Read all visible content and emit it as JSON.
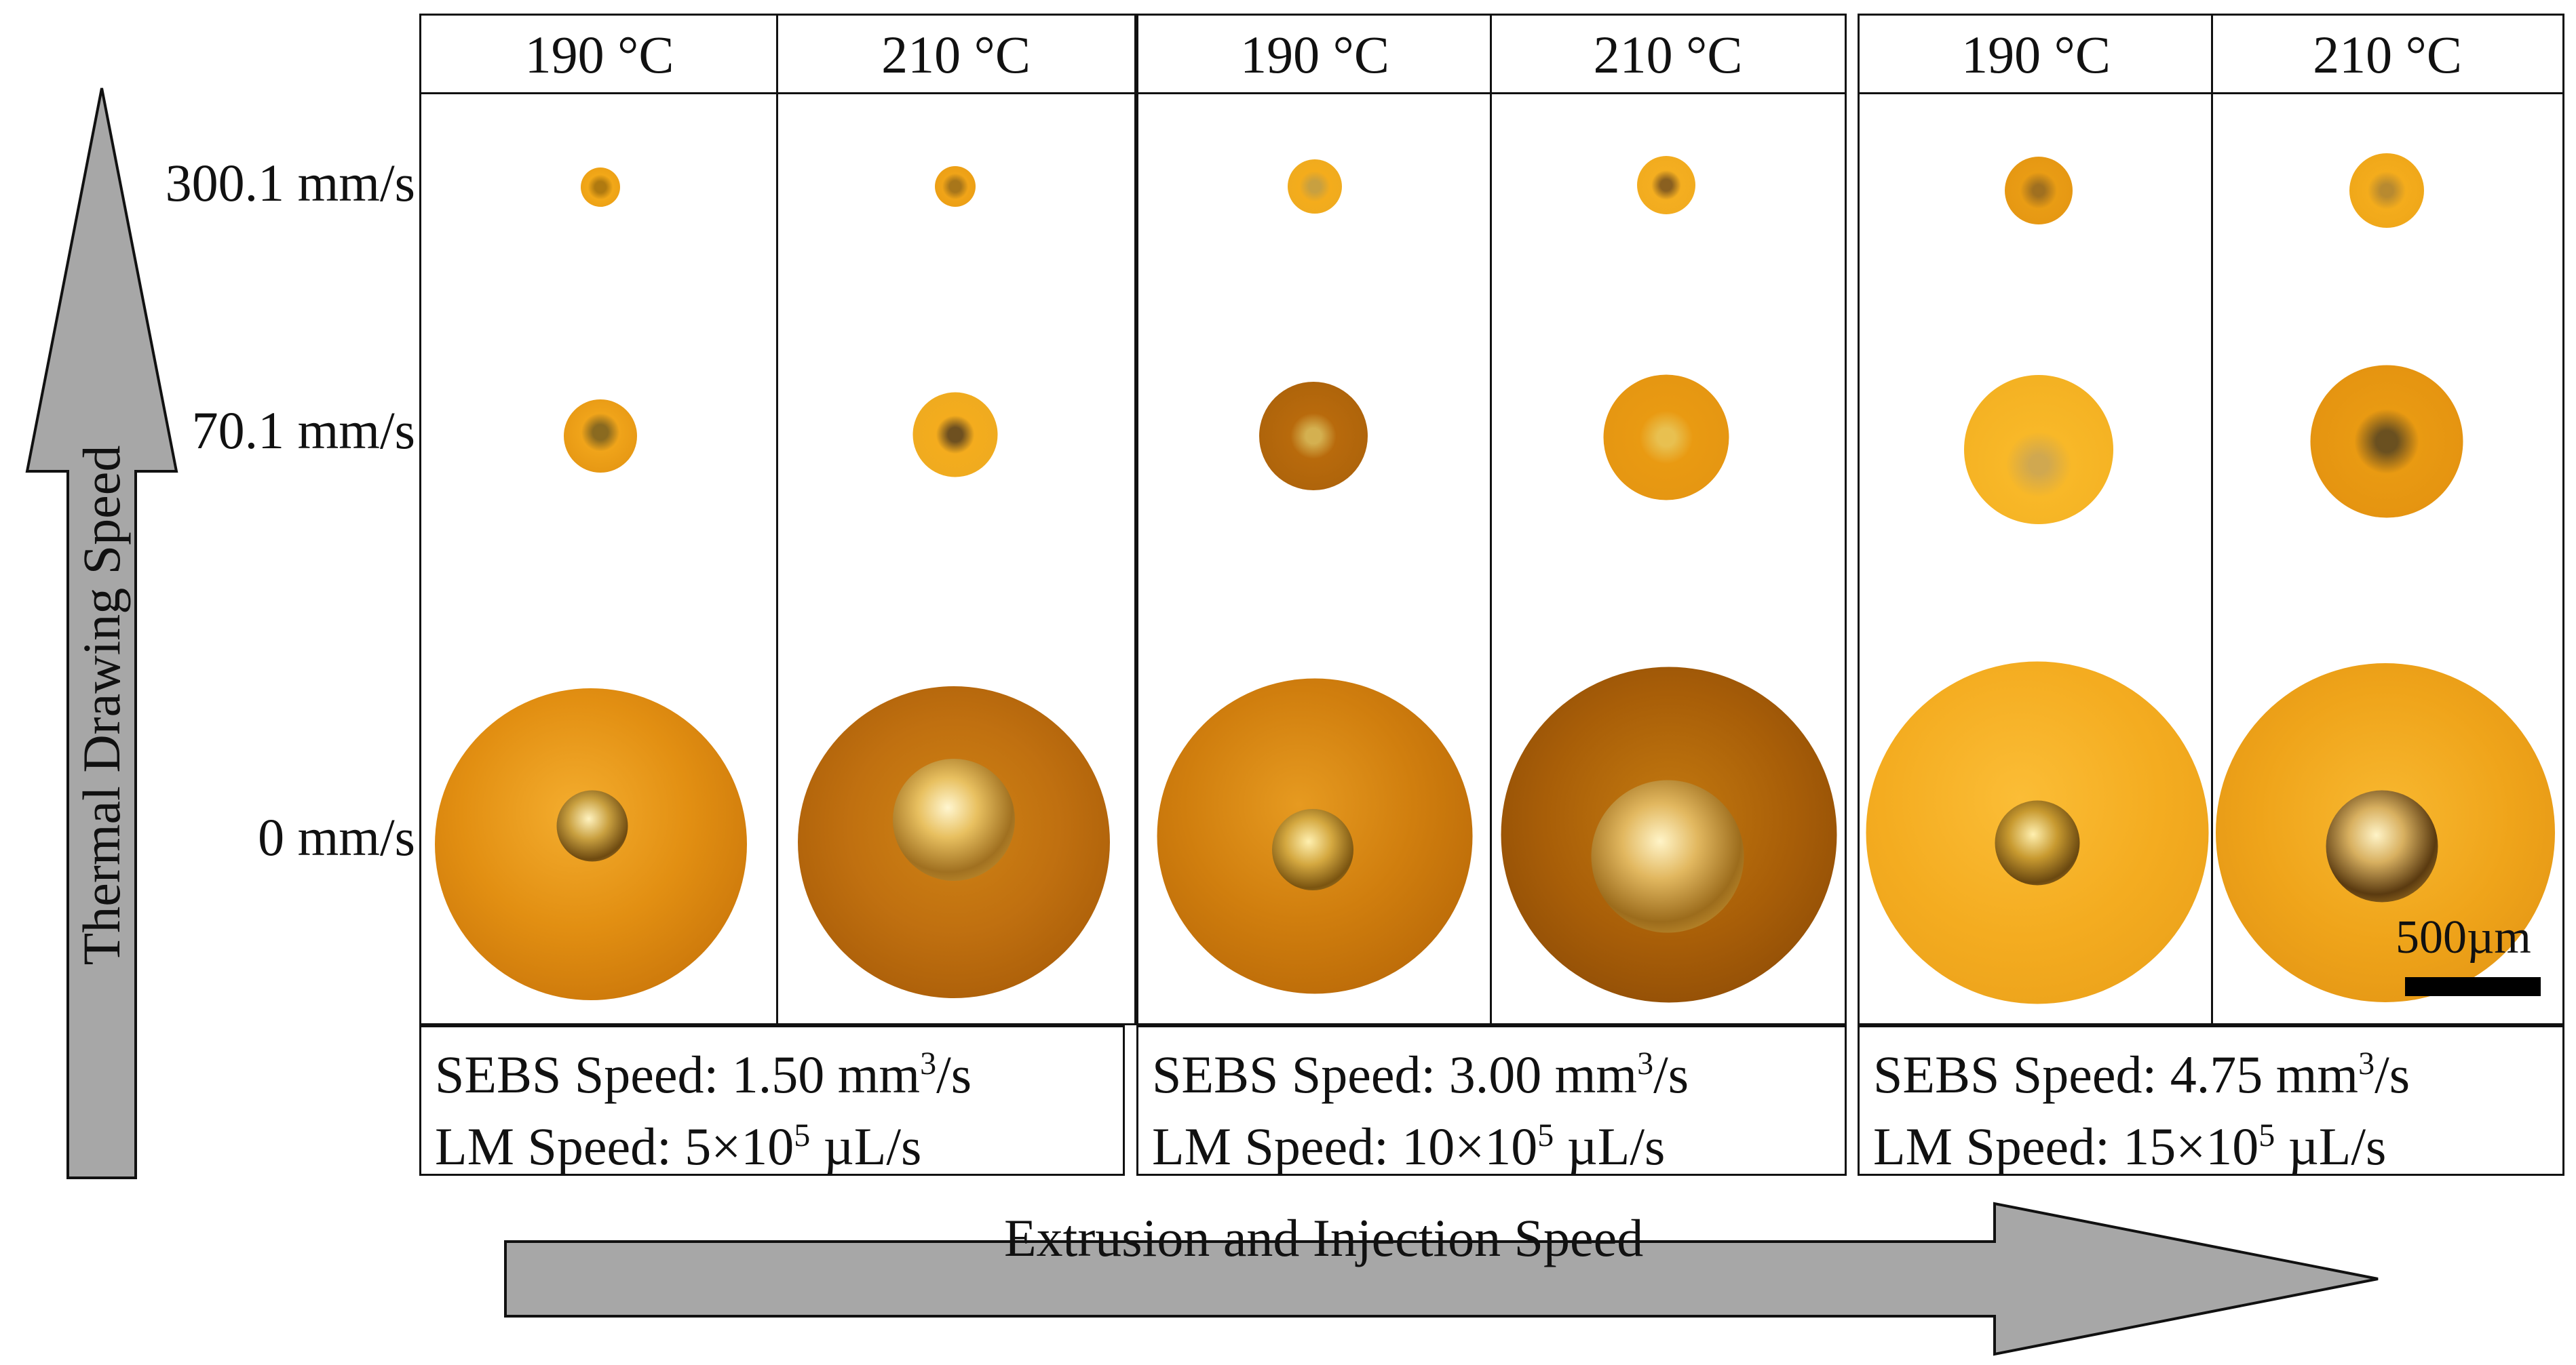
{
  "figure": {
    "row_labels": [
      "300.1 mm/s",
      "70.1 mm/s",
      "0 mm/s"
    ],
    "y_axis_label": "Thermal Drawing Speed",
    "x_axis_label": "Extrusion and Injection Speed",
    "scale_bar_label": "500µm",
    "groups": [
      {
        "temps": [
          "190 °C",
          "210 °C"
        ],
        "sebs_prefix": "SEBS Speed: 1.50 mm",
        "sebs_sup": "3",
        "sebs_suffix": "/s",
        "lm_prefix": "LM Speed: 5×10",
        "lm_sup": "5",
        "lm_suffix": " µL/s"
      },
      {
        "temps": [
          "190 °C",
          "210 °C"
        ],
        "sebs_prefix": "SEBS Speed: 3.00 mm",
        "sebs_sup": "3",
        "sebs_suffix": "/s",
        "lm_prefix": "LM Speed: 10×10",
        "lm_sup": "5",
        "lm_suffix": " µL/s"
      },
      {
        "temps": [
          "190 °C",
          "210 °C"
        ],
        "sebs_prefix": "SEBS Speed: 4.75 mm",
        "sebs_sup": "3",
        "sebs_suffix": "/s",
        "lm_prefix": "LM Speed: 15×10",
        "lm_sup": "5",
        "lm_suffix": " µL/s"
      }
    ],
    "colors": {
      "amber_light": "#f6b41c",
      "amber_mid": "#e49410",
      "amber_dark": "#b86a06",
      "core": "#c8b46a",
      "arrow_fill": "#a7a7a7"
    }
  }
}
